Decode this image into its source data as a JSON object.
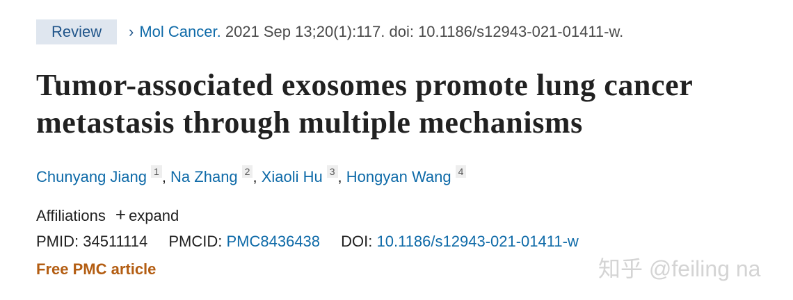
{
  "header": {
    "type_badge": "Review",
    "journal": "Mol Cancer.",
    "citation": " 2021 Sep 13;20(1):117. doi: 10.1186/s12943-021-01411-w."
  },
  "title": "Tumor-associated exosomes promote lung cancer metastasis through multiple mechanisms",
  "authors": [
    {
      "name": "Chunyang Jiang",
      "aff": "1"
    },
    {
      "name": "Na Zhang",
      "aff": "2"
    },
    {
      "name": "Xiaoli Hu",
      "aff": "3"
    },
    {
      "name": "Hongyan Wang",
      "aff": "4"
    }
  ],
  "affiliations": {
    "label": "Affiliations",
    "expand_icon": "plus-icon",
    "expand": "expand"
  },
  "ids": {
    "pmid_label": "PMID:",
    "pmid": "34511114",
    "pmcid_label": "PMCID:",
    "pmcid": "PMC8436438",
    "doi_label": "DOI:",
    "doi": "10.1186/s12943-021-01411-w"
  },
  "free_article": "Free PMC article",
  "watermark": "知乎 @feiling na",
  "colors": {
    "link": "#0e6aa8",
    "free": "#b35d12",
    "badge_bg": "#dfe6ef"
  }
}
